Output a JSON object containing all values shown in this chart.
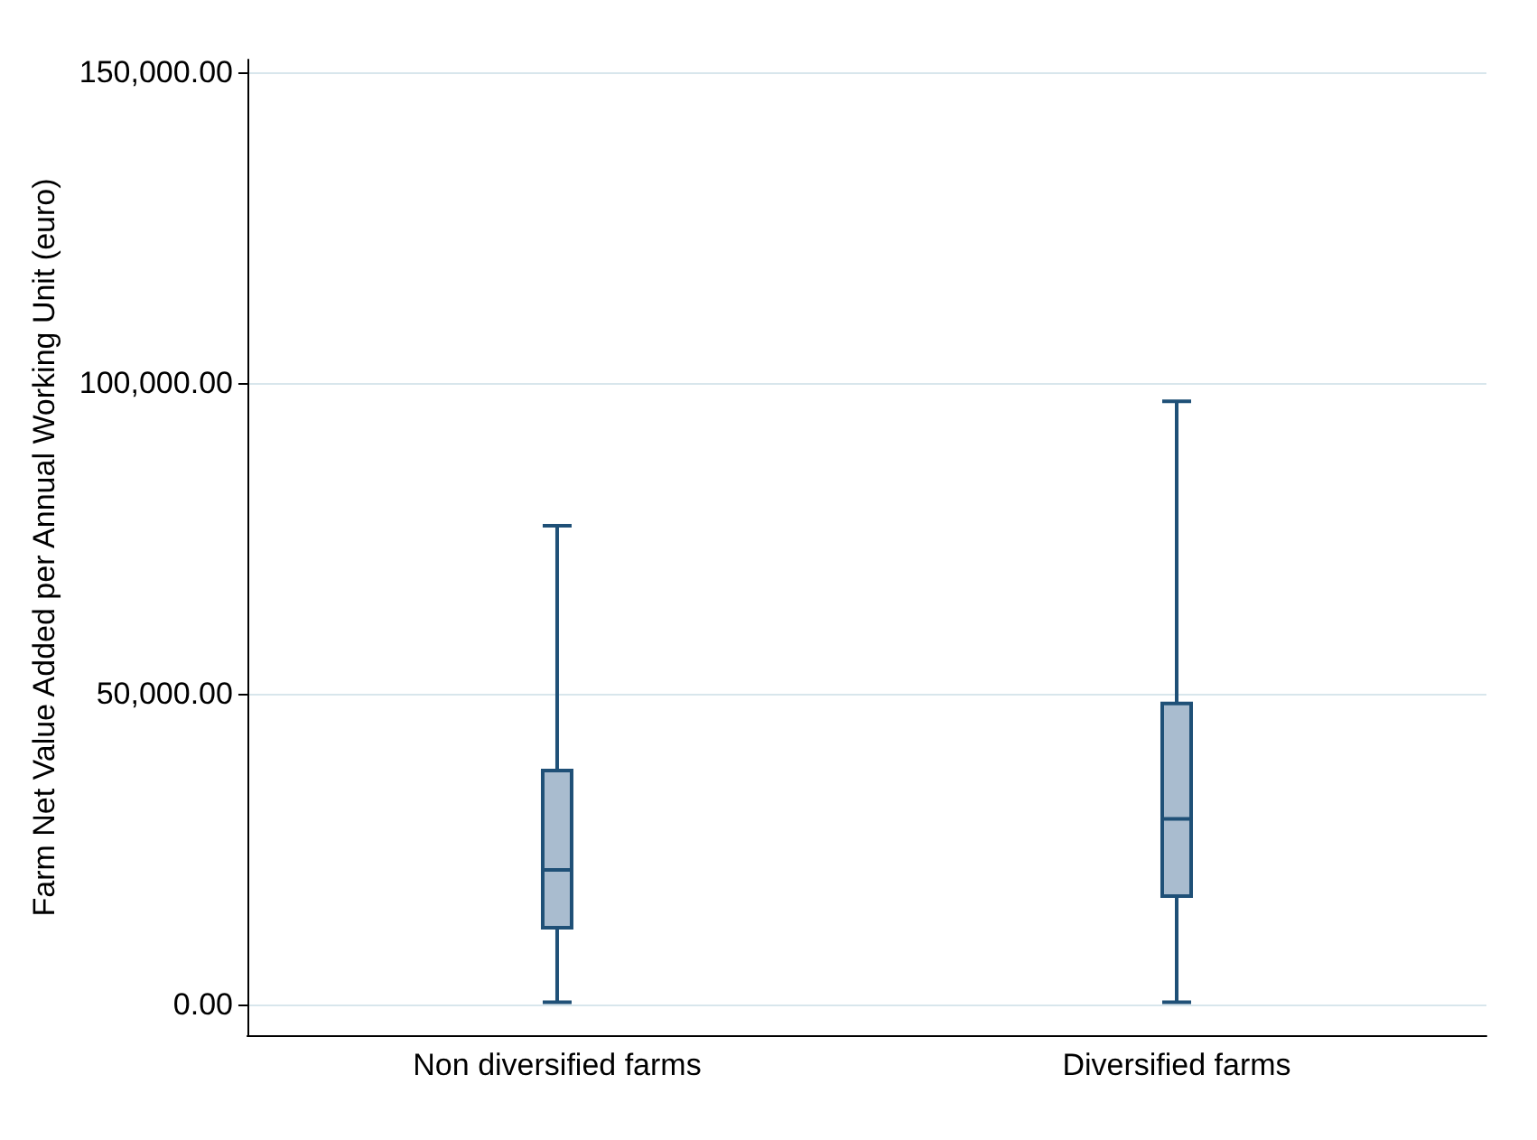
{
  "chart_data": {
    "type": "box",
    "ylabel": "Farm Net Value Added per Annual Working Unit (euro)",
    "categories": [
      "Non diversified farms",
      "Diversified farms"
    ],
    "boxes": [
      {
        "low": 300,
        "q1": 12300,
        "median": 21600,
        "q3": 37600,
        "high": 77000
      },
      {
        "low": 300,
        "q1": 17400,
        "median": 29800,
        "q3": 48400,
        "high": 97000
      }
    ],
    "color": "#1f5077",
    "ylim": [
      -5000,
      152000
    ],
    "yticks": [
      {
        "value": 0,
        "label": "0.00"
      },
      {
        "value": 50000,
        "label": "50,000.00"
      },
      {
        "value": 100000,
        "label": "100,000.00"
      },
      {
        "value": 150000,
        "label": "150,000.00"
      }
    ],
    "grid": "y"
  }
}
